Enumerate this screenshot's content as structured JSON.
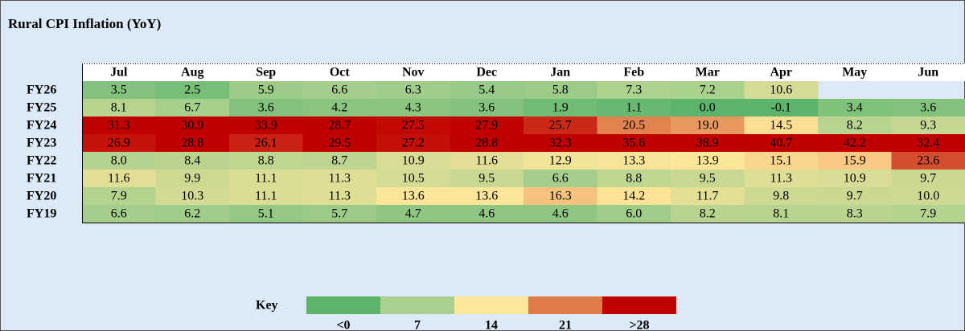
{
  "chart_data": {
    "type": "heatmap",
    "title": "Rural CPI Inflation (YoY)",
    "categories": [
      "Jul",
      "Aug",
      "Sep",
      "Oct",
      "Nov",
      "Dec",
      "Jan",
      "Feb",
      "Mar",
      "Apr",
      "May",
      "Jun"
    ],
    "rows": [
      "FY26",
      "FY25",
      "FY24",
      "FY23",
      "FY22",
      "FY21",
      "FY20",
      "FY19"
    ],
    "values": [
      [
        3.5,
        2.5,
        5.9,
        6.6,
        6.3,
        5.4,
        5.8,
        7.3,
        7.2,
        10.6,
        null,
        null
      ],
      [
        8.1,
        6.7,
        3.6,
        4.2,
        4.3,
        3.6,
        1.9,
        1.1,
        0.0,
        -0.1,
        3.4,
        3.6
      ],
      [
        31.3,
        30.9,
        33.9,
        28.7,
        27.5,
        27.9,
        25.7,
        20.5,
        19.0,
        14.5,
        8.2,
        9.3
      ],
      [
        26.9,
        28.8,
        26.1,
        29.5,
        27.2,
        28.8,
        32.3,
        35.6,
        38.9,
        40.7,
        42.2,
        32.4
      ],
      [
        8.0,
        8.4,
        8.8,
        8.7,
        10.9,
        11.6,
        12.9,
        13.3,
        13.9,
        15.1,
        15.9,
        23.6
      ],
      [
        11.6,
        9.9,
        11.1,
        11.3,
        10.5,
        9.5,
        6.6,
        8.8,
        9.5,
        11.3,
        10.9,
        9.7
      ],
      [
        7.9,
        10.3,
        11.1,
        11.3,
        13.6,
        13.6,
        16.3,
        14.2,
        11.7,
        9.8,
        9.7,
        10.0
      ],
      [
        6.6,
        6.2,
        5.1,
        5.7,
        4.7,
        4.6,
        4.6,
        6.0,
        8.2,
        8.1,
        8.3,
        7.9
      ]
    ],
    "value_labels": [
      [
        "3.5",
        "2.5",
        "5.9",
        "6.6",
        "6.3",
        "5.4",
        "5.8",
        "7.3",
        "7.2",
        "10.6",
        null,
        null
      ],
      [
        "8.1",
        "6.7",
        "3.6",
        "4.2",
        "4.3",
        "3.6",
        "1.9",
        "1.1",
        "0.0",
        "-0.1",
        "3.4",
        "3.6"
      ],
      [
        "31.3",
        "30.9",
        "33.9",
        "28.7",
        "27.5",
        "27.9",
        "25.7",
        "20.5",
        "19.0",
        "14.5",
        "8.2",
        "9.3"
      ],
      [
        "26.9",
        "28.8",
        "26.1",
        "29.5",
        "27.2",
        "28.8",
        "32.3",
        "35.6",
        "38.9",
        "40.7",
        "42.2",
        "32.4"
      ],
      [
        "8.0",
        "8.4",
        "8.8",
        "8.7",
        "10.9",
        "11.6",
        "12.9",
        "13.3",
        "13.9",
        "15.1",
        "15.9",
        "23.6"
      ],
      [
        "11.6",
        "9.9",
        "11.1",
        "11.3",
        "10.5",
        "9.5",
        "6.6",
        "8.8",
        "9.5",
        "11.3",
        "10.9",
        "9.7"
      ],
      [
        "7.9",
        "10.3",
        "11.1",
        "11.3",
        "13.6",
        "13.6",
        "16.3",
        "14.2",
        "11.7",
        "9.8",
        "9.7",
        "10.0"
      ],
      [
        "6.6",
        "6.2",
        "5.1",
        "5.7",
        "4.7",
        "4.6",
        "4.6",
        "6.0",
        "8.2",
        "8.1",
        "8.3",
        "7.9"
      ]
    ],
    "key": {
      "title": "Key",
      "stops": [
        {
          "value": 0,
          "label": "<0"
        },
        7,
        14,
        21,
        {
          "value": 28,
          "label": ">28"
        }
      ],
      "colors": [
        "#5bb46a",
        "#a9d08e",
        "#ffe699",
        "#e07a48",
        "#c00000"
      ]
    }
  }
}
